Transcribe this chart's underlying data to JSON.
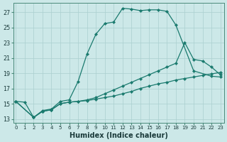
{
  "xlabel": "Humidex (Indice chaleur)",
  "bg_color": "#cce8e8",
  "line_color": "#1a7a6e",
  "grid_color": "#aacfcf",
  "xlim_min": -0.3,
  "xlim_max": 23.4,
  "ylim_min": 12.5,
  "ylim_max": 28.2,
  "yticks": [
    13,
    15,
    17,
    19,
    21,
    23,
    25,
    27
  ],
  "xticks": [
    0,
    1,
    2,
    3,
    4,
    5,
    6,
    7,
    8,
    9,
    10,
    11,
    12,
    13,
    14,
    15,
    16,
    17,
    18,
    19,
    20,
    21,
    22,
    23
  ],
  "line1_x": [
    0,
    1,
    2,
    3,
    4,
    5,
    6,
    7,
    8,
    9,
    10,
    11,
    12,
    13,
    14,
    15,
    16,
    17,
    18,
    20,
    22,
    23
  ],
  "line1_y": [
    15.3,
    15.2,
    13.2,
    14.1,
    14.3,
    15.3,
    15.5,
    17.9,
    21.5,
    24.1,
    25.5,
    25.7,
    27.5,
    27.4,
    27.2,
    27.3,
    27.3,
    27.1,
    25.3,
    19.3,
    18.6,
    18.5
  ],
  "line2_x": [
    0,
    2,
    3,
    4,
    5,
    6,
    7,
    8,
    9,
    10,
    11,
    12,
    13,
    14,
    15,
    16,
    17,
    18,
    19,
    20,
    21,
    22,
    23
  ],
  "line2_y": [
    15.3,
    13.2,
    14.0,
    14.2,
    15.0,
    15.2,
    15.3,
    15.5,
    15.8,
    16.3,
    16.8,
    17.3,
    17.8,
    18.3,
    18.8,
    19.3,
    19.8,
    20.3,
    23.0,
    20.8,
    20.6,
    19.8,
    18.8
  ],
  "line3_x": [
    0,
    2,
    3,
    4,
    5,
    6,
    7,
    8,
    9,
    10,
    11,
    12,
    13,
    14,
    15,
    16,
    17,
    18,
    19,
    20,
    21,
    22,
    23
  ],
  "line3_y": [
    15.3,
    13.2,
    14.0,
    14.2,
    15.0,
    15.2,
    15.3,
    15.4,
    15.6,
    15.8,
    16.0,
    16.3,
    16.6,
    17.0,
    17.3,
    17.6,
    17.8,
    18.1,
    18.3,
    18.5,
    18.7,
    18.9,
    19.1
  ]
}
